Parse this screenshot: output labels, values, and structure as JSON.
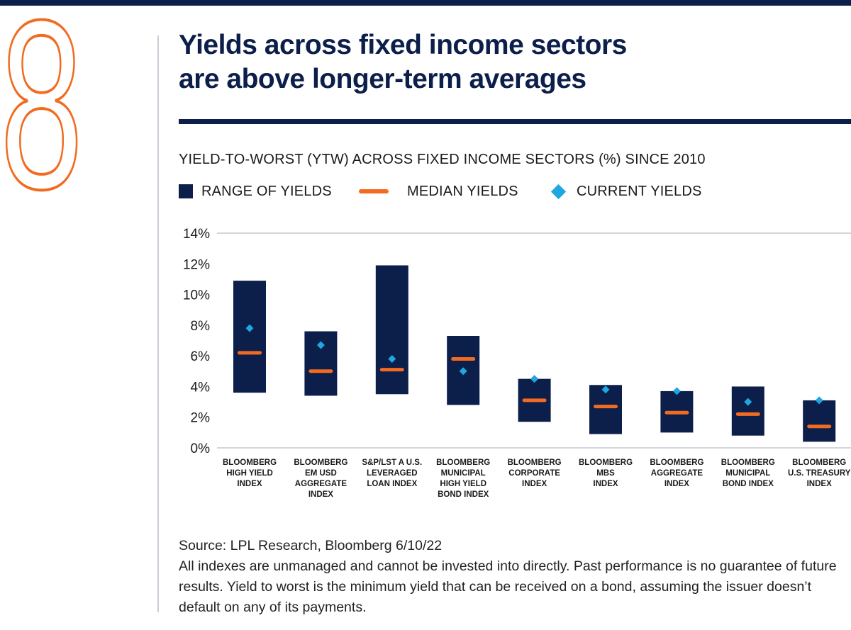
{
  "page": {
    "number": "8",
    "title_line1": "Yields across fixed income sectors",
    "title_line2": "are above longer-term averages",
    "source": "Source: LPL Research, Bloomberg 6/10/22",
    "disclaimer": "All indexes are unmanaged and cannot be invested into directly. Past performance is no guarantee of future results. Yield to worst is the minimum yield that can be received on a bond, assuming the issuer doesn’t default on any of its payments."
  },
  "colors": {
    "range": "#0c1e4a",
    "median": "#f26b21",
    "current": "#1ea7e1",
    "accent": "#f26b21"
  },
  "chart_data": {
    "type": "range-bar",
    "title": "YIELD-TO-WORST (YTW) ACROSS FIXED INCOME SECTORS (%) SINCE 2010",
    "ylim": [
      0,
      14
    ],
    "yticks": [
      "0%",
      "2%",
      "4%",
      "6%",
      "8%",
      "10%",
      "12%",
      "14%"
    ],
    "legend": [
      "RANGE OF YIELDS",
      "MEDIAN YIELDS",
      "CURRENT YIELDS"
    ],
    "legend_position": "top-left",
    "grid": false,
    "categories": [
      [
        "BLOOMBERG",
        "HIGH YIELD",
        "INDEX"
      ],
      [
        "BLOOMBERG",
        "EM USD",
        "AGGREGATE",
        "INDEX"
      ],
      [
        "S&P/LST  A  U.S.",
        "LEVERAGED",
        "LOAN INDEX"
      ],
      [
        "BLOOMBERG",
        "MUNICIPAL",
        "HIGH YIELD",
        "BOND INDEX"
      ],
      [
        "BLOOMBERG",
        "CORPORATE",
        "INDEX"
      ],
      [
        "BLOOMBERG",
        "MBS",
        "INDEX"
      ],
      [
        "BLOOMBERG",
        "AGGREGATE",
        "INDEX"
      ],
      [
        "BLOOMBERG",
        "MUNICIPAL",
        "BOND INDEX"
      ],
      [
        "BLOOMBERG",
        "U.S. TREASURY",
        "INDEX"
      ]
    ],
    "series": [
      {
        "name": "RANGE OF YIELDS",
        "low": [
          3.6,
          3.4,
          3.5,
          2.8,
          1.7,
          0.9,
          1.0,
          0.8,
          0.4
        ],
        "high": [
          10.9,
          7.6,
          11.9,
          7.3,
          4.5,
          4.1,
          3.7,
          4.0,
          3.1
        ]
      },
      {
        "name": "MEDIAN YIELDS",
        "values": [
          6.2,
          5.0,
          5.1,
          5.8,
          3.1,
          2.7,
          2.3,
          2.2,
          1.4
        ]
      },
      {
        "name": "CURRENT YIELDS",
        "values": [
          7.8,
          6.7,
          5.8,
          5.0,
          4.5,
          3.8,
          3.7,
          3.0,
          3.1
        ]
      }
    ]
  }
}
